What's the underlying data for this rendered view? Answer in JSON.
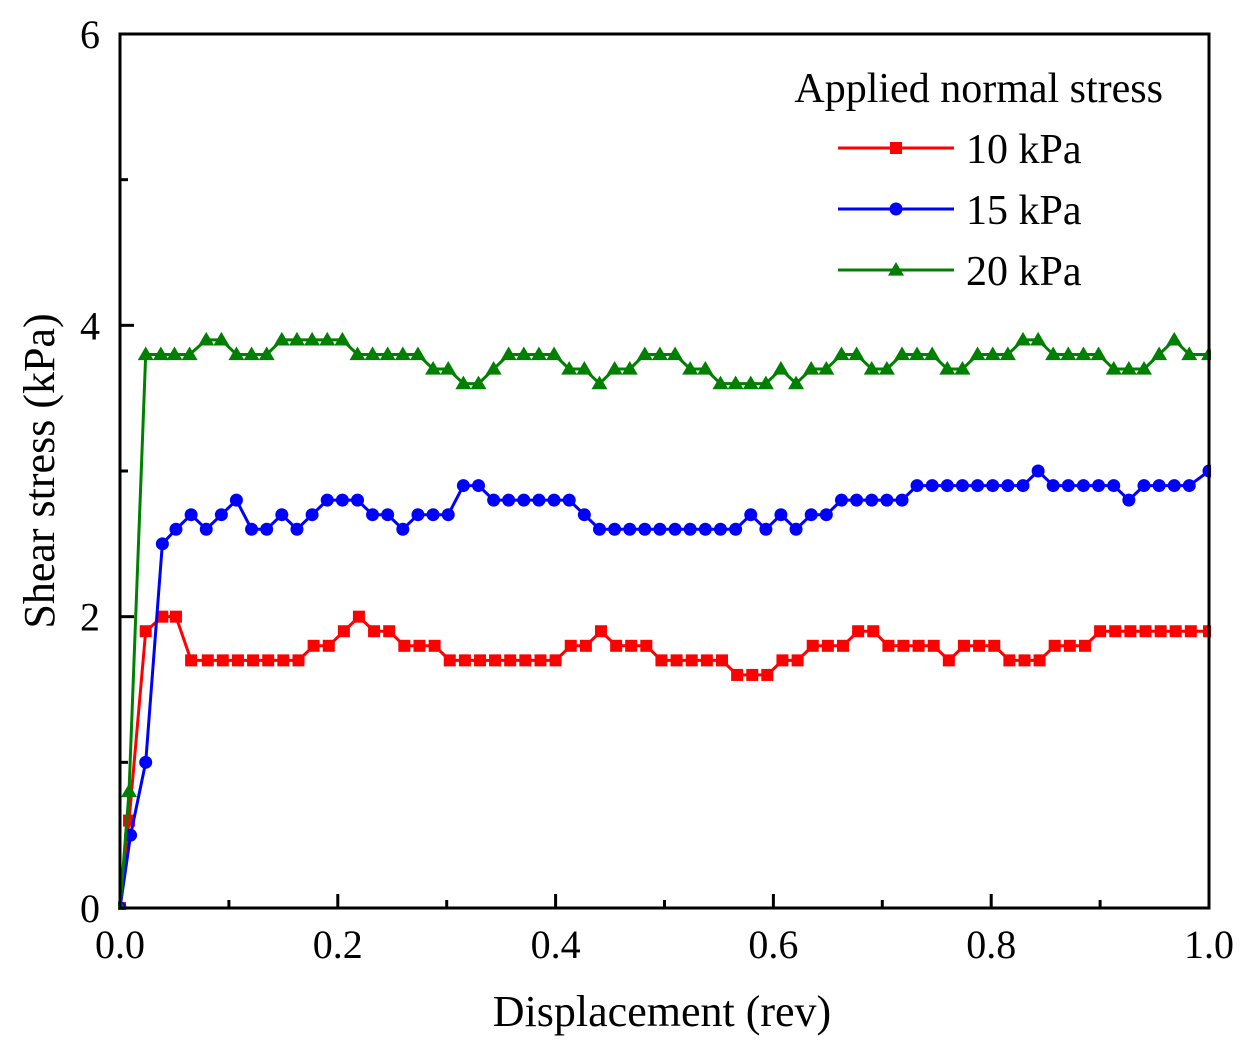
{
  "chart_data": {
    "type": "line",
    "xlabel": "Displacement (rev)",
    "ylabel": "Shear stress (kPa)",
    "xlim": [
      0,
      1.0
    ],
    "ylim": [
      0,
      6
    ],
    "xticks": [
      0.0,
      0.2,
      0.4,
      0.6,
      0.8,
      1.0
    ],
    "xtick_labels": [
      "0.0",
      "0.2",
      "0.4",
      "0.6",
      "0.8",
      "1.0"
    ],
    "yticks": [
      0,
      2,
      4,
      6
    ],
    "ytick_labels": [
      "0",
      "2",
      "4",
      "6"
    ],
    "grid": false,
    "legend": {
      "title": "Applied normal stress",
      "position": "top-right"
    },
    "series": [
      {
        "name": "10 kPa",
        "color": "#ff0000",
        "marker": "square",
        "x": [
          0,
          0.0083,
          0.0236,
          0.0389,
          0.0514,
          0.0653,
          0.0806,
          0.0944,
          0.1083,
          0.1222,
          0.1361,
          0.15,
          0.1639,
          0.1778,
          0.1917,
          0.2056,
          0.2194,
          0.2333,
          0.2472,
          0.2611,
          0.275,
          0.2889,
          0.3028,
          0.3167,
          0.3306,
          0.3444,
          0.3583,
          0.3722,
          0.3861,
          0.4,
          0.4139,
          0.4278,
          0.4417,
          0.4556,
          0.4694,
          0.4833,
          0.4972,
          0.5111,
          0.525,
          0.5389,
          0.5528,
          0.5667,
          0.5806,
          0.5944,
          0.6083,
          0.6222,
          0.6361,
          0.65,
          0.6639,
          0.6778,
          0.6917,
          0.7056,
          0.7194,
          0.7333,
          0.7472,
          0.7611,
          0.775,
          0.7889,
          0.8028,
          0.8167,
          0.8306,
          0.8444,
          0.8583,
          0.8722,
          0.8861,
          0.9,
          0.9139,
          0.9278,
          0.9417,
          0.9556,
          0.9694,
          0.9833,
          1.0
        ],
        "y": [
          0,
          0.6,
          1.9,
          2.0,
          2.0,
          1.7,
          1.7,
          1.7,
          1.7,
          1.7,
          1.7,
          1.7,
          1.7,
          1.8,
          1.8,
          1.9,
          2.0,
          1.9,
          1.9,
          1.8,
          1.8,
          1.8,
          1.7,
          1.7,
          1.7,
          1.7,
          1.7,
          1.7,
          1.7,
          1.7,
          1.8,
          1.8,
          1.9,
          1.8,
          1.8,
          1.8,
          1.7,
          1.7,
          1.7,
          1.7,
          1.7,
          1.6,
          1.6,
          1.6,
          1.7,
          1.7,
          1.8,
          1.8,
          1.8,
          1.9,
          1.9,
          1.8,
          1.8,
          1.8,
          1.8,
          1.7,
          1.8,
          1.8,
          1.8,
          1.7,
          1.7,
          1.7,
          1.8,
          1.8,
          1.8,
          1.9,
          1.9,
          1.9,
          1.9,
          1.9,
          1.9,
          1.9,
          1.9
        ]
      },
      {
        "name": "15 kPa",
        "color": "#0000ff",
        "marker": "circle",
        "x": [
          0,
          0.0097,
          0.0236,
          0.0389,
          0.0514,
          0.0653,
          0.0792,
          0.0931,
          0.1069,
          0.1208,
          0.1347,
          0.1486,
          0.1625,
          0.1764,
          0.1903,
          0.2042,
          0.2181,
          0.2319,
          0.2458,
          0.2597,
          0.2736,
          0.2875,
          0.3014,
          0.3153,
          0.3292,
          0.3431,
          0.3569,
          0.3708,
          0.3847,
          0.3986,
          0.4125,
          0.4264,
          0.4403,
          0.4542,
          0.4681,
          0.4819,
          0.4958,
          0.5097,
          0.5236,
          0.5375,
          0.5514,
          0.5653,
          0.5792,
          0.5931,
          0.6069,
          0.6208,
          0.6347,
          0.6486,
          0.6625,
          0.6764,
          0.6903,
          0.7042,
          0.7181,
          0.7319,
          0.7458,
          0.7597,
          0.7736,
          0.7875,
          0.8014,
          0.8153,
          0.8292,
          0.8431,
          0.8569,
          0.8708,
          0.8847,
          0.8986,
          0.9125,
          0.9264,
          0.9403,
          0.9542,
          0.9681,
          0.9819,
          1.0
        ],
        "y": [
          0,
          0.5,
          1.0,
          2.5,
          2.6,
          2.7,
          2.6,
          2.7,
          2.8,
          2.6,
          2.6,
          2.7,
          2.6,
          2.7,
          2.8,
          2.8,
          2.8,
          2.7,
          2.7,
          2.6,
          2.7,
          2.7,
          2.7,
          2.9,
          2.9,
          2.8,
          2.8,
          2.8,
          2.8,
          2.8,
          2.8,
          2.7,
          2.6,
          2.6,
          2.6,
          2.6,
          2.6,
          2.6,
          2.6,
          2.6,
          2.6,
          2.6,
          2.7,
          2.6,
          2.7,
          2.6,
          2.7,
          2.7,
          2.8,
          2.8,
          2.8,
          2.8,
          2.8,
          2.9,
          2.9,
          2.9,
          2.9,
          2.9,
          2.9,
          2.9,
          2.9,
          3.0,
          2.9,
          2.9,
          2.9,
          2.9,
          2.9,
          2.8,
          2.9,
          2.9,
          2.9,
          2.9,
          3.0
        ]
      },
      {
        "name": "20 kPa",
        "color": "#008000",
        "marker": "triangle",
        "x": [
          0,
          0.0083,
          0.0236,
          0.0375,
          0.05,
          0.0639,
          0.0792,
          0.0931,
          0.1069,
          0.1208,
          0.1347,
          0.1486,
          0.1625,
          0.1764,
          0.1903,
          0.2042,
          0.2181,
          0.2319,
          0.2458,
          0.2597,
          0.2736,
          0.2875,
          0.3014,
          0.3153,
          0.3292,
          0.3431,
          0.3569,
          0.3708,
          0.3847,
          0.3986,
          0.4125,
          0.4264,
          0.4403,
          0.4542,
          0.4681,
          0.4819,
          0.4958,
          0.5097,
          0.5236,
          0.5375,
          0.5514,
          0.5653,
          0.5792,
          0.5931,
          0.6069,
          0.6208,
          0.6347,
          0.6486,
          0.6625,
          0.6764,
          0.6903,
          0.7042,
          0.7181,
          0.7319,
          0.7458,
          0.7597,
          0.7736,
          0.7875,
          0.8014,
          0.8153,
          0.8292,
          0.8431,
          0.8569,
          0.8708,
          0.8847,
          0.8986,
          0.9125,
          0.9264,
          0.9403,
          0.9542,
          0.9681,
          0.9819,
          1.0
        ],
        "y": [
          0,
          0.8,
          3.8,
          3.8,
          3.8,
          3.8,
          3.9,
          3.9,
          3.8,
          3.8,
          3.8,
          3.9,
          3.9,
          3.9,
          3.9,
          3.9,
          3.8,
          3.8,
          3.8,
          3.8,
          3.8,
          3.7,
          3.7,
          3.6,
          3.6,
          3.7,
          3.8,
          3.8,
          3.8,
          3.8,
          3.7,
          3.7,
          3.6,
          3.7,
          3.7,
          3.8,
          3.8,
          3.8,
          3.7,
          3.7,
          3.6,
          3.6,
          3.6,
          3.6,
          3.7,
          3.6,
          3.7,
          3.7,
          3.8,
          3.8,
          3.7,
          3.7,
          3.8,
          3.8,
          3.8,
          3.7,
          3.7,
          3.8,
          3.8,
          3.8,
          3.9,
          3.9,
          3.8,
          3.8,
          3.8,
          3.8,
          3.7,
          3.7,
          3.7,
          3.8,
          3.9,
          3.8,
          3.8
        ]
      }
    ]
  }
}
